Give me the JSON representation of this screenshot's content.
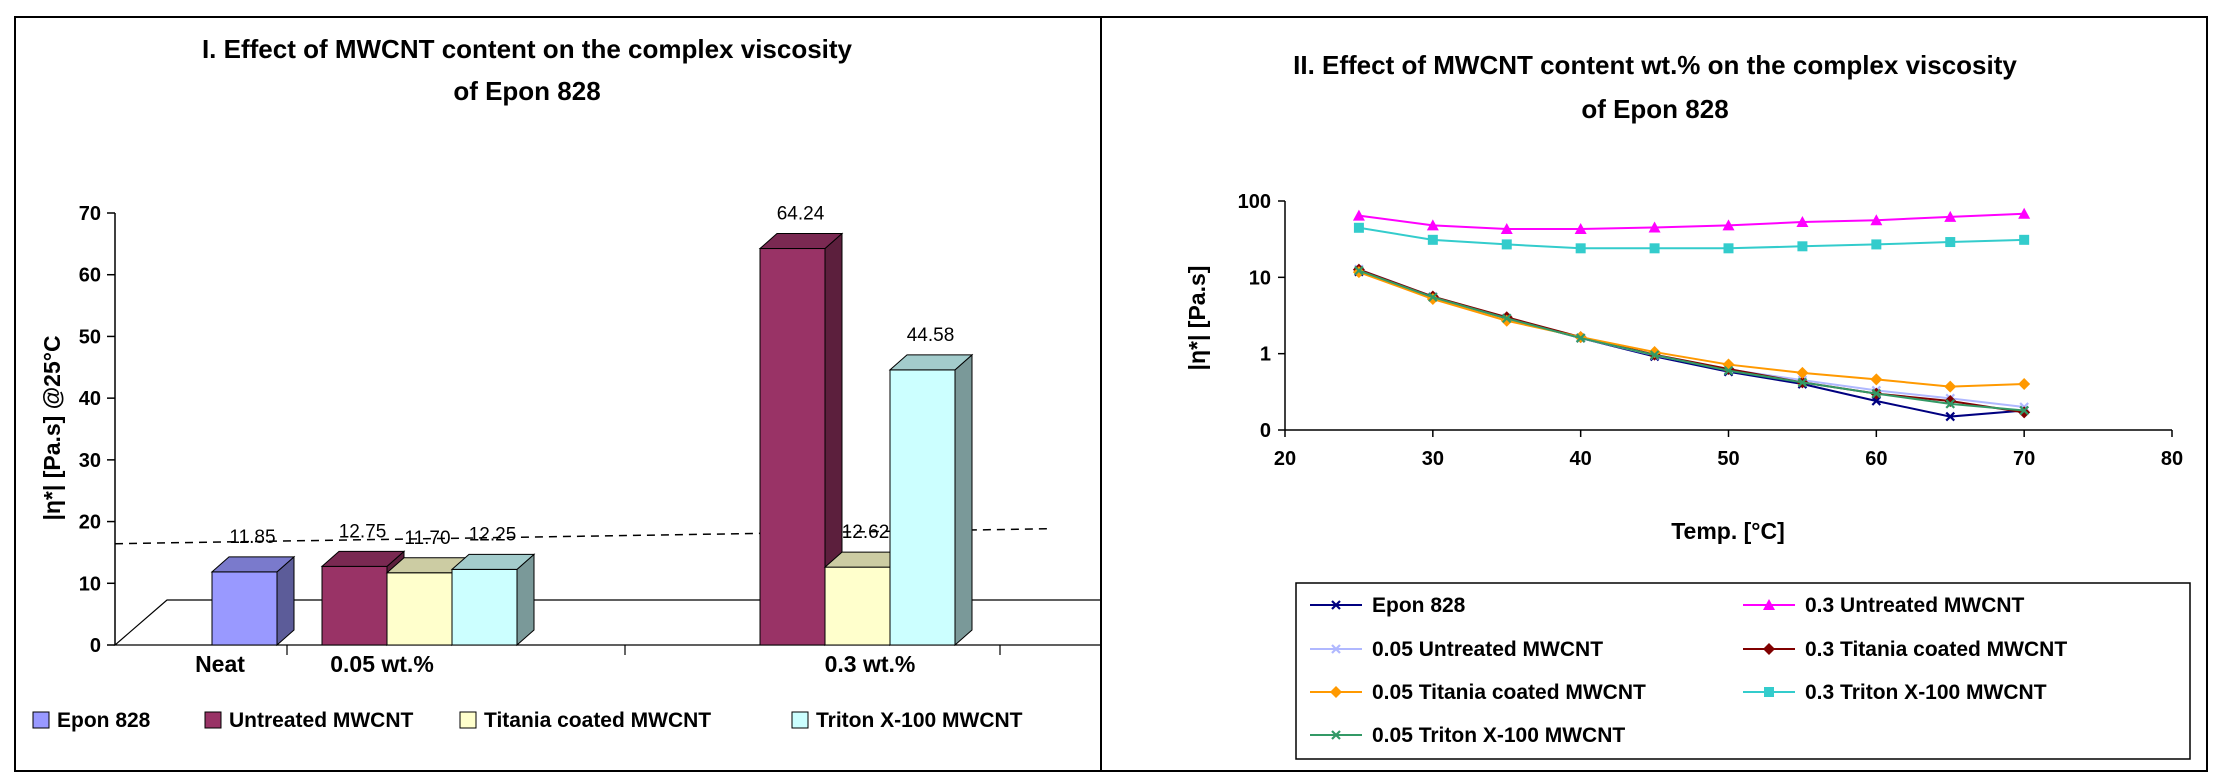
{
  "chart_data": [
    {
      "type": "bar",
      "title_lines": [
        "I. Effect of MWCNT content on the complex viscosity",
        "of Epon 828"
      ],
      "ylabel": "|η*| [Pa.s] @25°C",
      "ylim": [
        0,
        70
      ],
      "yticks": [
        0,
        10,
        20,
        30,
        40,
        50,
        60,
        70
      ],
      "groups": [
        {
          "label": "Neat",
          "bars": [
            {
              "series": "Epon 828",
              "value": 11.85,
              "value_label": "11.85"
            }
          ]
        },
        {
          "label": "0.05 wt.%",
          "bars": [
            {
              "series": "Untreated MWCNT",
              "value": 12.75,
              "value_label": "12.75"
            },
            {
              "series": "Titania coated MWCNT",
              "value": 11.7,
              "value_label": "11.70"
            },
            {
              "series": "Triton X-100 MWCNT",
              "value": 12.25,
              "value_label": "12.25"
            }
          ]
        },
        {
          "label": "0.3 wt.%",
          "bars": [
            {
              "series": "Untreated MWCNT",
              "value": 64.24,
              "value_label": "64.24"
            },
            {
              "series": "Titania coated MWCNT",
              "value": 12.62,
              "value_label": "12.62"
            },
            {
              "series": "Triton X-100 MWCNT",
              "value": 44.58,
              "value_label": "44.58"
            }
          ]
        }
      ],
      "reference_line_value": 12.2,
      "legend": [
        {
          "name": "Epon 828",
          "color": "#9999ff"
        },
        {
          "name": "Untreated MWCNT",
          "color": "#993366"
        },
        {
          "name": "Titania coated MWCNT",
          "color": "#ffffcc"
        },
        {
          "name": "Triton X-100 MWCNT",
          "color": "#ccffff"
        }
      ]
    },
    {
      "type": "line",
      "title_lines": [
        "II. Effect of  MWCNT content wt.% on the complex viscosity",
        "of Epon 828"
      ],
      "xlabel": "Temp. [°C]",
      "ylabel": "|η*| [Pa.s]",
      "xlim": [
        20,
        80
      ],
      "xticks": [
        20,
        30,
        40,
        50,
        60,
        70,
        80
      ],
      "yscale": "log",
      "yticks": [
        {
          "value": 0.1,
          "label": "0"
        },
        {
          "value": 1,
          "label": "1"
        },
        {
          "value": 10,
          "label": "10"
        },
        {
          "value": 100,
          "label": "100"
        }
      ],
      "x": [
        25,
        30,
        35,
        40,
        45,
        50,
        55,
        60,
        65,
        70
      ],
      "series": [
        {
          "name": "Epon 828",
          "color": "#000080",
          "marker": "x",
          "values": [
            11.85,
            5.5,
            2.9,
            1.6,
            0.92,
            0.58,
            0.4,
            0.24,
            0.15,
            0.18
          ]
        },
        {
          "name": "0.3 Untreated MWCNT",
          "color": "#ff00ff",
          "marker": "triangle",
          "values": [
            64.24,
            48,
            43,
            43,
            45,
            48,
            53,
            56,
            62,
            68
          ]
        },
        {
          "name": "0.05 Untreated MWCNT",
          "color": "#b0b8ff",
          "marker": "x",
          "values": [
            12.75,
            5.6,
            2.9,
            1.6,
            0.95,
            0.62,
            0.45,
            0.33,
            0.26,
            0.2
          ]
        },
        {
          "name": "0.3 Titania coated MWCNT",
          "color": "#800000",
          "marker": "diamond",
          "values": [
            12.62,
            5.6,
            3.0,
            1.65,
            0.97,
            0.63,
            0.42,
            0.3,
            0.24,
            0.17
          ]
        },
        {
          "name": "0.05 Titania coated MWCNT",
          "color": "#ff9900",
          "marker": "diamond",
          "values": [
            11.7,
            5.2,
            2.7,
            1.65,
            1.05,
            0.72,
            0.56,
            0.46,
            0.37,
            0.4
          ]
        },
        {
          "name": "0.3 Triton X-100 MWCNT",
          "color": "#33cccc",
          "marker": "square",
          "values": [
            44.58,
            31,
            27,
            24,
            24,
            24,
            25.5,
            27,
            29,
            31
          ]
        },
        {
          "name": "0.05 Triton X-100 MWCNT",
          "color": "#339966",
          "marker": "x",
          "values": [
            12.25,
            5.5,
            2.9,
            1.6,
            0.96,
            0.6,
            0.42,
            0.3,
            0.22,
            0.18
          ]
        }
      ]
    }
  ]
}
